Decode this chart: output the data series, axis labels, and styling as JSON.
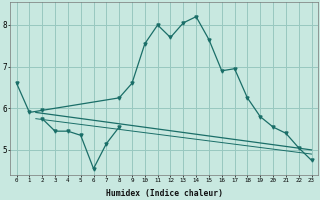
{
  "background_color": "#c8e8e0",
  "grid_color": "#98c8c0",
  "line_color": "#1a6e68",
  "xlabel": "Humidex (Indice chaleur)",
  "xlim": [
    -0.5,
    23.5
  ],
  "ylim": [
    4.4,
    8.55
  ],
  "y_ticks": [
    5,
    6,
    7,
    8
  ],
  "x_ticks": [
    0,
    1,
    2,
    3,
    4,
    5,
    6,
    7,
    8,
    9,
    10,
    11,
    12,
    13,
    14,
    15,
    16,
    17,
    18,
    19,
    20,
    21,
    22,
    23
  ],
  "main_curve_x": [
    0,
    1,
    2,
    8,
    9,
    10,
    11,
    12,
    13,
    14,
    15,
    16,
    17,
    18,
    19,
    20,
    21,
    22,
    23
  ],
  "main_curve_y": [
    6.6,
    5.9,
    5.95,
    6.25,
    6.6,
    7.55,
    8.0,
    7.7,
    8.05,
    8.2,
    7.65,
    6.9,
    6.95,
    6.25,
    5.8,
    5.55,
    5.4,
    5.05,
    4.75
  ],
  "zigzag_x": [
    2,
    3,
    4,
    5,
    6,
    7,
    8
  ],
  "zigzag_y": [
    5.75,
    5.45,
    5.45,
    5.35,
    4.55,
    5.15,
    5.55
  ],
  "trend1_x": [
    1.5,
    23
  ],
  "trend1_y": [
    5.9,
    5.0
  ],
  "trend2_x": [
    1.5,
    23
  ],
  "trend2_y": [
    5.75,
    4.9
  ],
  "last_point_x": [
    23
  ],
  "last_point_y": [
    4.75
  ]
}
